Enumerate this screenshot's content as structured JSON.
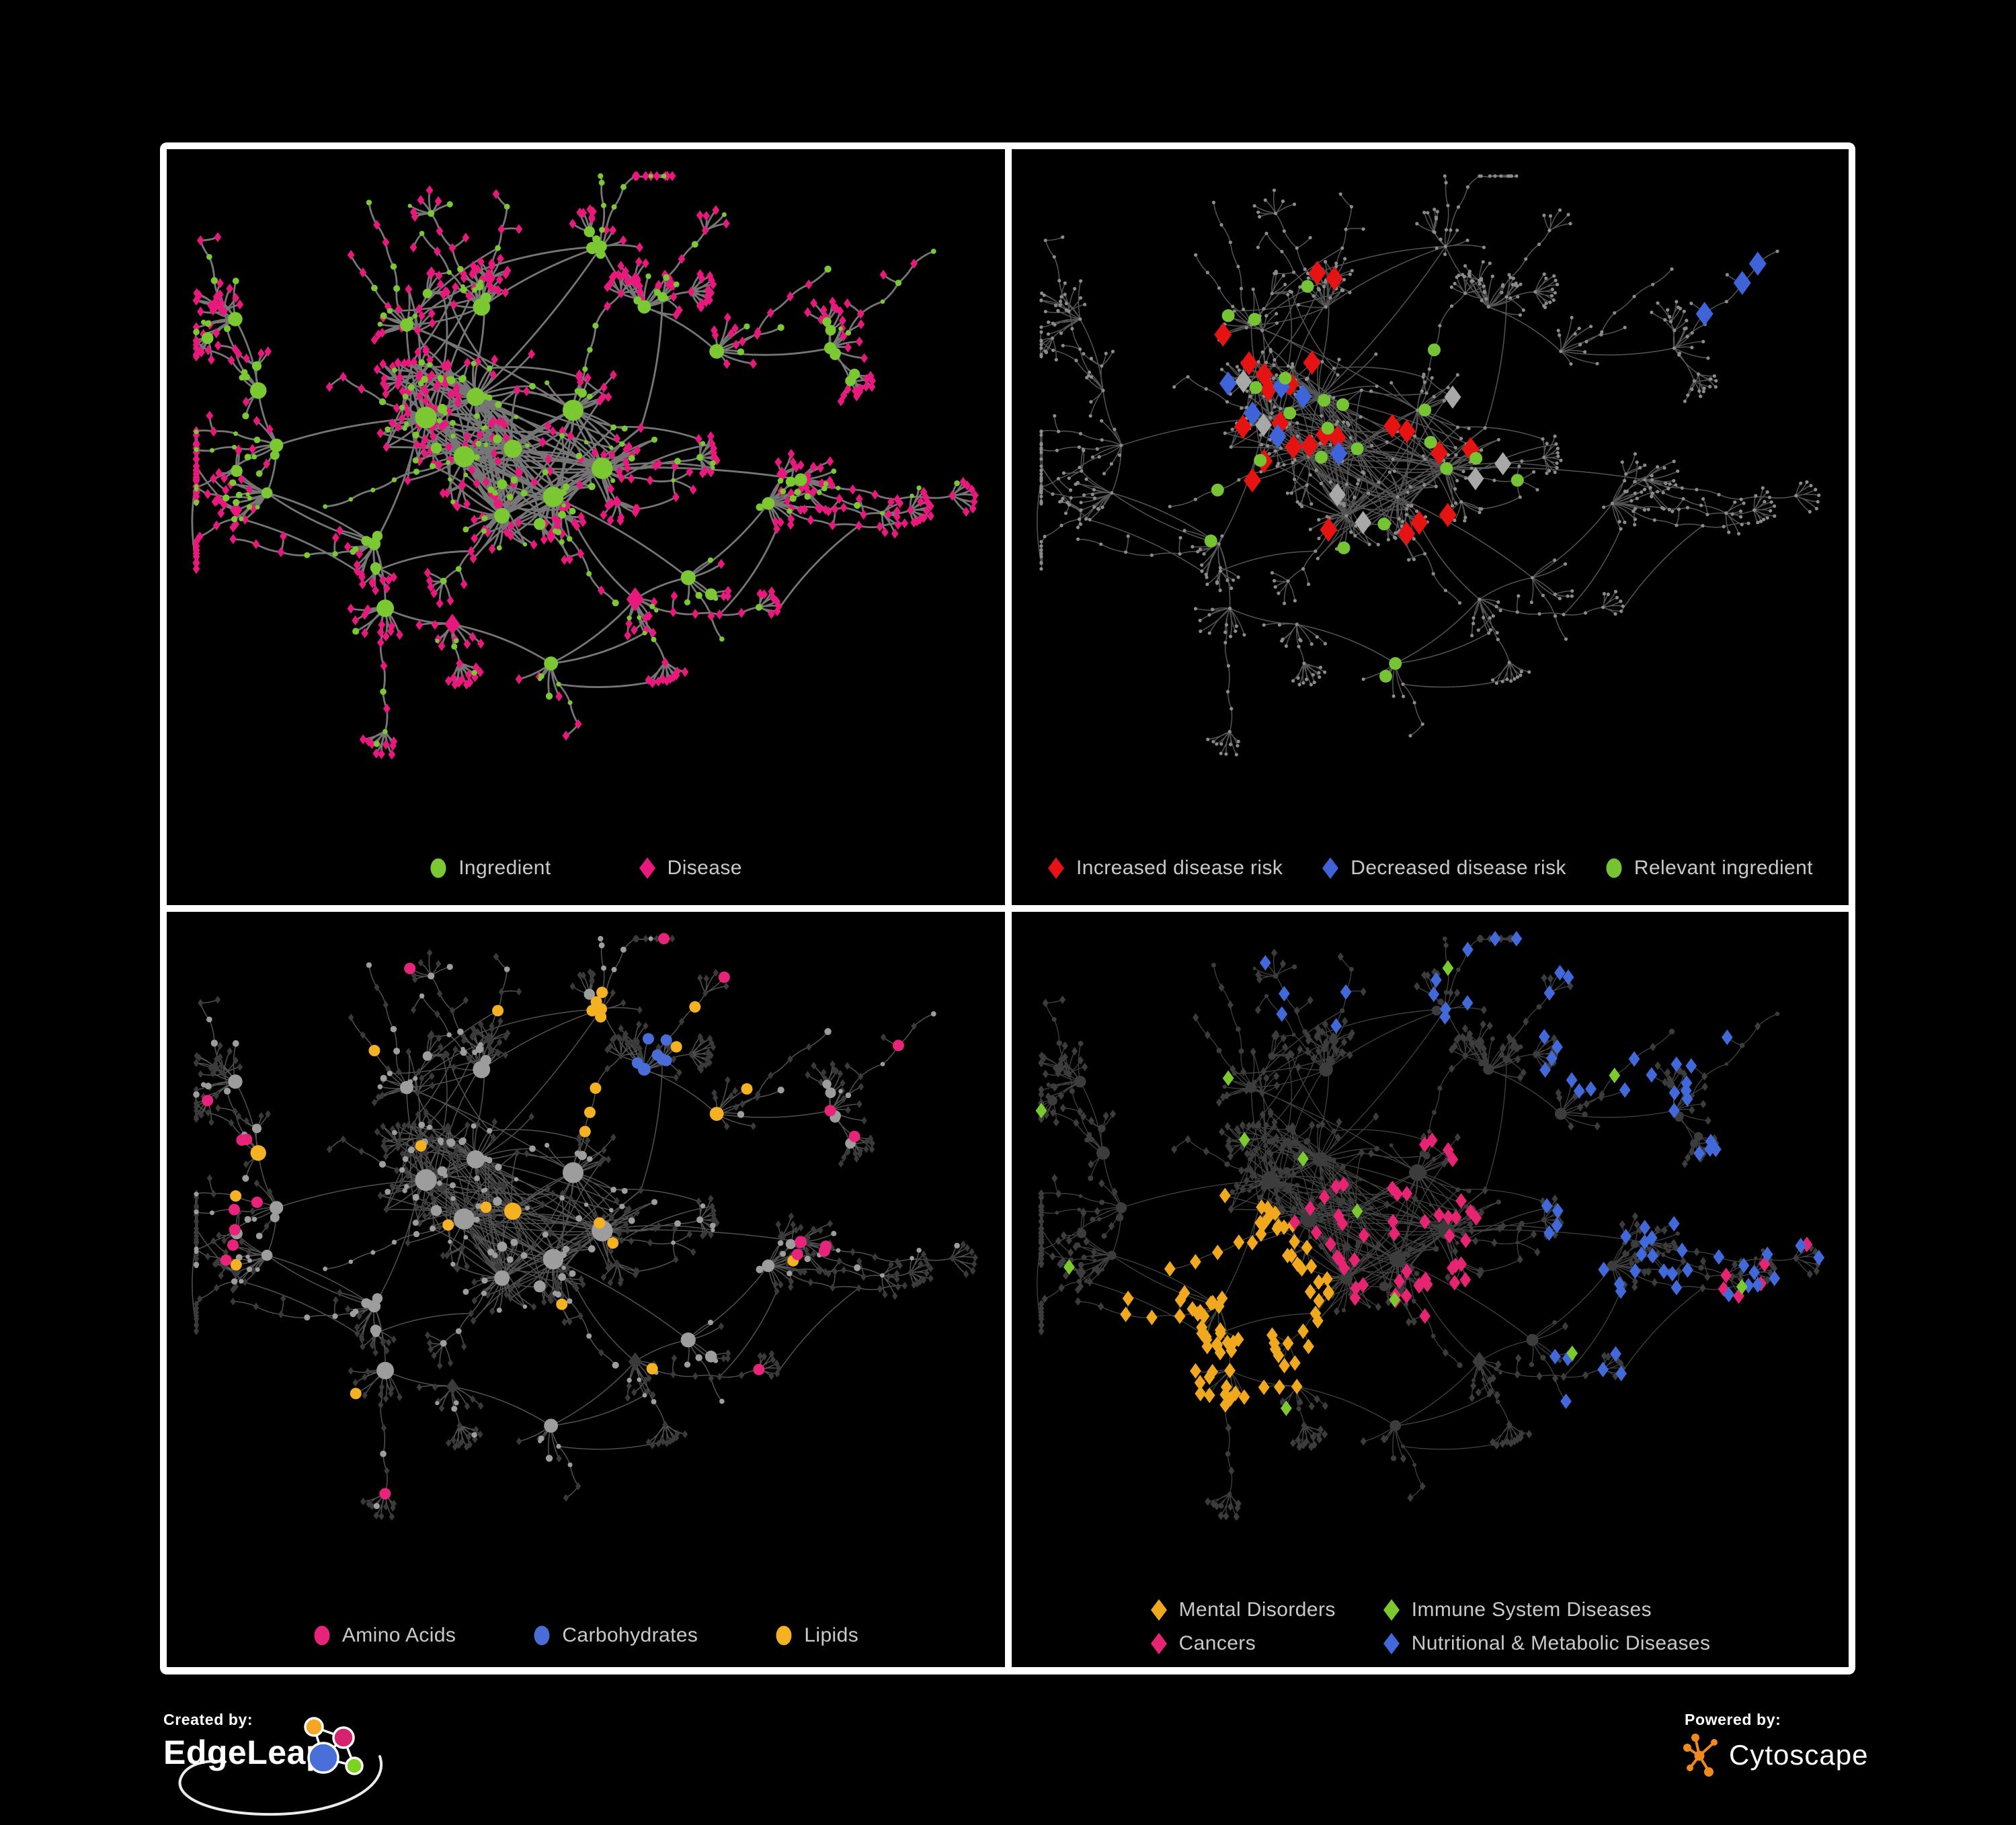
{
  "figure": {
    "background": "#000000",
    "frame_color": "#ffffff",
    "legend_text_color": "#c9c9c9"
  },
  "panels": [
    {
      "name": "ingredients-and-diseases",
      "position": "top-left",
      "legend": {
        "items": [
          {
            "label": "Ingredient",
            "shape": "circle",
            "color": "#7cc832"
          },
          {
            "label": "Disease",
            "shape": "diamond",
            "color": "#e8187c"
          }
        ]
      },
      "network": {
        "type": "node-link graph",
        "edge_color": "#838383",
        "node_classes": [
          {
            "name": "Ingredient",
            "shape": "circle",
            "color": "#7cc832",
            "approx_count": 320
          },
          {
            "name": "Disease",
            "shape": "diamond",
            "color": "#e8187c",
            "approx_count": 660
          }
        ]
      }
    },
    {
      "name": "disease-risk",
      "position": "top-right",
      "legend": {
        "items": [
          {
            "label": "Increased disease risk",
            "shape": "diamond",
            "color": "#e61313"
          },
          {
            "label": "Decreased disease risk",
            "shape": "diamond",
            "color": "#3f63d8"
          },
          {
            "label": "Relevant ingredient",
            "shape": "circle",
            "color": "#76c433"
          }
        ]
      },
      "network": {
        "type": "node-link graph",
        "edge_color": "#636363",
        "base_node_color": "#8b8b8b",
        "highlights": [
          {
            "name": "increased-risk",
            "shape": "diamond",
            "color": "#e61313",
            "approx_count": 26
          },
          {
            "name": "decreased-risk",
            "shape": "diamond",
            "color": "#3f63d8",
            "approx_count": 9
          },
          {
            "name": "neutral-gray",
            "shape": "diamond",
            "color": "#a8a8a8",
            "approx_count": 7
          },
          {
            "name": "relevant-ingredient",
            "shape": "circle",
            "color": "#76c433",
            "approx_count": 24
          }
        ]
      }
    },
    {
      "name": "ingredient-classes",
      "position": "bottom-left",
      "legend": {
        "items": [
          {
            "label": "Amino Acids",
            "shape": "circle",
            "color": "#e8237a"
          },
          {
            "label": "Carbohydrates",
            "shape": "circle",
            "color": "#4a6cd6"
          },
          {
            "label": "Lipids",
            "shape": "circle",
            "color": "#f4b223"
          }
        ]
      },
      "network": {
        "type": "node-link graph",
        "edge_color": "#5f5f5f",
        "base_node_colors": {
          "ingredient": "#9d9d9d",
          "disease": "#3a3a3a"
        },
        "highlights": [
          {
            "name": "Amino Acids",
            "shape": "circle",
            "color": "#e8237a",
            "approx_count": 20
          },
          {
            "name": "Carbohydrates",
            "shape": "circle",
            "color": "#4a6cd6",
            "approx_count": 13
          },
          {
            "name": "Lipids",
            "shape": "circle",
            "color": "#f4b223",
            "approx_count": 58
          }
        ]
      }
    },
    {
      "name": "disease-categories",
      "position": "bottom-right",
      "legend": {
        "columns": 2,
        "items": [
          {
            "label": "Mental Disorders",
            "shape": "diamond",
            "color": "#f0a81f"
          },
          {
            "label": "Immune System Diseases",
            "shape": "diamond",
            "color": "#7bc92e"
          },
          {
            "label": "Cancers",
            "shape": "diamond",
            "color": "#e72471"
          },
          {
            "label": "Nutritional & Metabolic Diseases",
            "shape": "diamond",
            "color": "#4169d9"
          }
        ]
      },
      "network": {
        "type": "node-link graph",
        "edge_color": "#4c4c4c",
        "base_node_color": "#3c3c3c",
        "highlights": [
          {
            "name": "Mental Disorders",
            "shape": "diamond",
            "color": "#f0a81f",
            "approx_count": 86
          },
          {
            "name": "Cancers",
            "shape": "diamond",
            "color": "#e72471",
            "approx_count": 56
          },
          {
            "name": "Nutritional & Metabolic Diseases",
            "shape": "diamond",
            "color": "#4169d9",
            "approx_count": 74
          },
          {
            "name": "Immune System Diseases",
            "shape": "diamond",
            "color": "#7bc92e",
            "approx_count": 12
          }
        ]
      }
    }
  ],
  "footer": {
    "created_by_label": "Created by:",
    "created_by_brand": "EdgeLeap",
    "powered_by_label": "Powered by:",
    "powered_by_brand": "Cytoscape",
    "edgeleap_colors": {
      "orange": "#f5a623",
      "magenta": "#d4246e",
      "blue": "#4a6fd8",
      "green": "#7ed321"
    },
    "cytoscape_color": "#ef8a1c"
  }
}
